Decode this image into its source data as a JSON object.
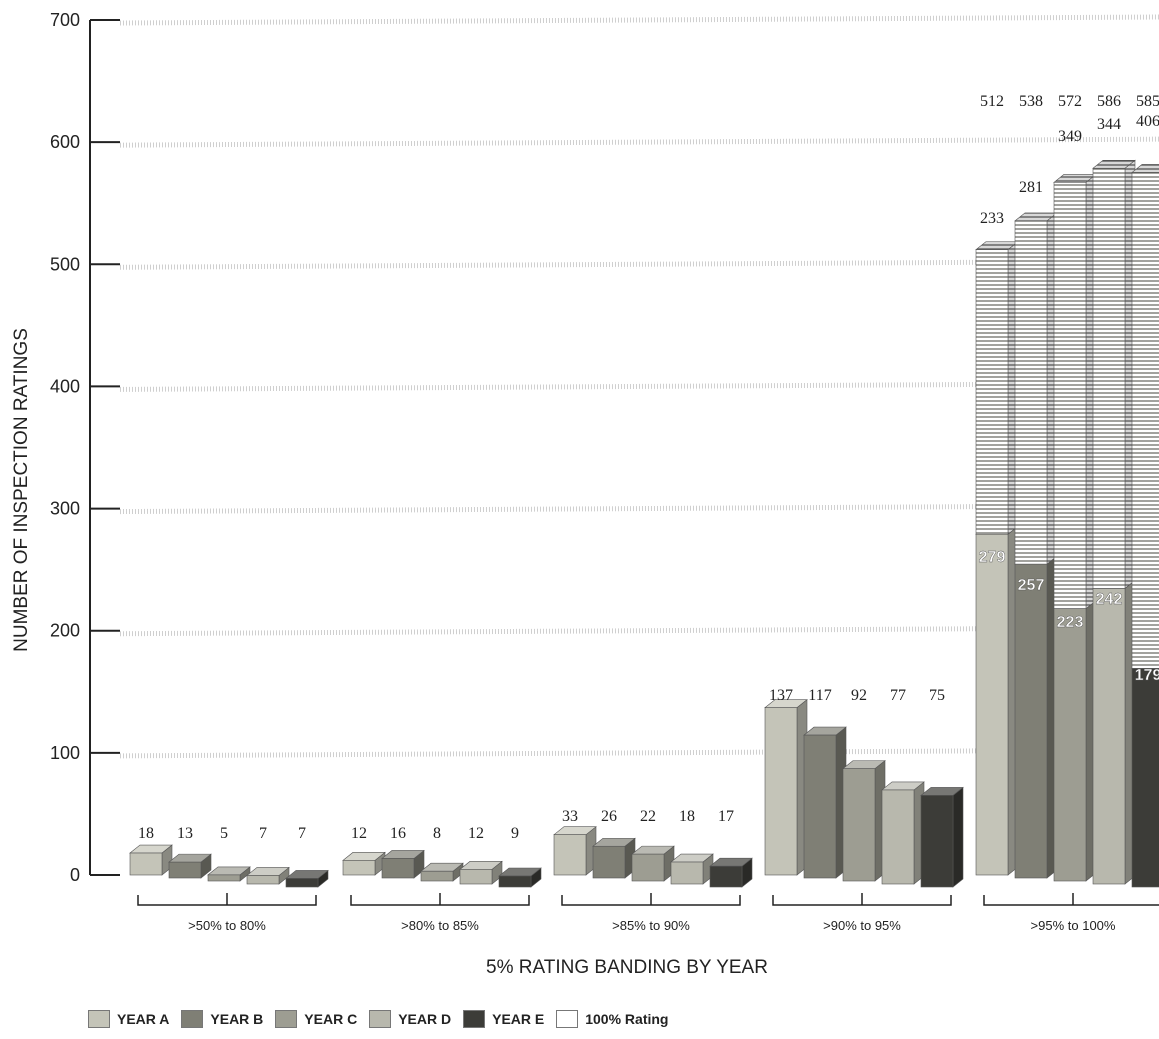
{
  "chart_data": {
    "type": "bar",
    "title": "",
    "xlabel": "5% RATING BANDING BY YEAR",
    "ylabel": "NUMBER OF INSPECTION RATINGS",
    "ylim": [
      0,
      700
    ],
    "yticks": [
      "0",
      "100",
      "200",
      "300",
      "400",
      "500",
      "600",
      "700"
    ],
    "categories": [
      ">50% to 80%",
      ">80% to 85%",
      ">85% to 90%",
      ">90% to 95%",
      ">95% to 100%"
    ],
    "series": [
      {
        "name": "YEAR A",
        "color": "#c4c4b8",
        "values": [
          18,
          12,
          33,
          137,
          512
        ]
      },
      {
        "name": "YEAR B",
        "color": "#7f7f75",
        "values": [
          13,
          16,
          26,
          117,
          538
        ]
      },
      {
        "name": "YEAR C",
        "color": "#9d9d92",
        "values": [
          5,
          8,
          22,
          92,
          572
        ]
      },
      {
        "name": "YEAR D",
        "color": "#b8b8ad",
        "values": [
          7,
          12,
          18,
          77,
          586
        ]
      },
      {
        "name": "YEAR E",
        "color": "#3c3c38",
        "values": [
          7,
          9,
          17,
          75,
          585
        ]
      }
    ],
    "stack_split": {
      "category": ">95% to 100%",
      "series": [
        {
          "name": "100% Rating",
          "color": "#ffffff",
          "values": [
            233,
            281,
            349,
            344,
            406
          ]
        },
        {
          "name": "remainder",
          "values": [
            279,
            257,
            223,
            242,
            179
          ]
        }
      ]
    },
    "value_labels": [
      [
        "18",
        "13",
        "5",
        "7",
        "7"
      ],
      [
        "12",
        "16",
        "8",
        "12",
        "9"
      ],
      [
        "33",
        "26",
        "22",
        "18",
        "17"
      ],
      [
        "137",
        "117",
        "92",
        "77",
        "75"
      ],
      [
        "512",
        "538",
        "572",
        "586",
        "585"
      ]
    ],
    "split_top_labels": [
      "233",
      "281",
      "349",
      "344",
      "406"
    ],
    "split_bottom_labels": [
      "279",
      "257",
      "223",
      "242",
      "179"
    ],
    "grid": true,
    "legend_position": "bottom-left",
    "legend": [
      {
        "label": "YEAR A",
        "color": "#c4c4b8"
      },
      {
        "label": "YEAR B",
        "color": "#7f7f75"
      },
      {
        "label": "YEAR C",
        "color": "#9d9d92"
      },
      {
        "label": "YEAR D",
        "color": "#b8b8ad"
      },
      {
        "label": "YEAR E",
        "color": "#3c3c38"
      },
      {
        "label": "100% Rating",
        "color": "#ffffff"
      }
    ]
  }
}
